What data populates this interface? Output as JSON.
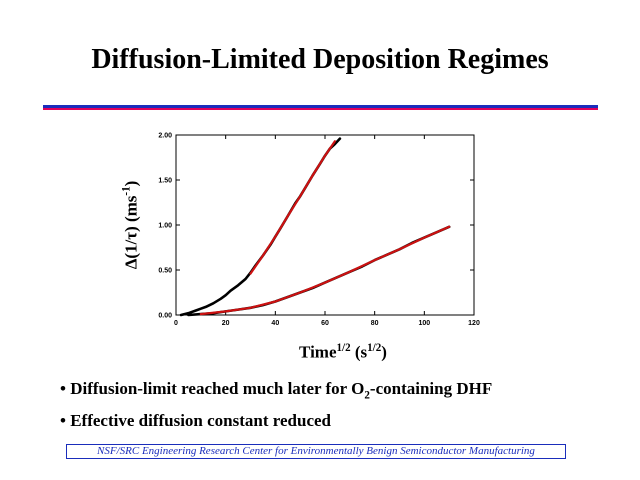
{
  "slide": {
    "title": "Diffusion-Limited Deposition Regimes",
    "ylabel_prefix": "Δ(1/τ) (ms",
    "ylabel_sup": "-1",
    "ylabel_suffix": ")",
    "xlabel_prefix": "Time",
    "xlabel_sup1": "1/2",
    "xlabel_mid": " (s",
    "xlabel_sup2": "1/2",
    "xlabel_suffix": ")",
    "bullet_char": "•",
    "bullet1_prefix": "Diffusion-limit reached much later for O",
    "bullet1_sub": "2",
    "bullet1_suffix": "-containing DHF",
    "bullet2": "Effective diffusion constant reduced",
    "footer": "NSF/SRC Engineering Research Center for Environmentally Benign Semiconductor Manufacturing"
  },
  "colors": {
    "rule_blue": "#1a2dbb",
    "rule_red": "#e0005a",
    "data": "#000000",
    "fit": "#cc1111",
    "footer": "#1a2dbb"
  },
  "chart_data": {
    "type": "line",
    "xlabel": "Time1/2 (s1/2)",
    "ylabel": "Δ(1/τ) (ms-1)",
    "xlim": [
      0,
      120
    ],
    "ylim": [
      0,
      2.0
    ],
    "x_ticks": [
      0,
      20,
      40,
      60,
      80,
      100,
      120
    ],
    "x_tick_labels": [
      "0",
      "20",
      "40",
      "60",
      "80",
      "100",
      "120"
    ],
    "y_ticks": [
      0,
      0.5,
      1.0,
      1.5,
      2.0
    ],
    "y_tick_labels": [
      "0.00",
      "0.50",
      "1.00",
      "1.50",
      "2.00"
    ],
    "series": [
      {
        "style": "data",
        "x": [
          2,
          5,
          8,
          10,
          12,
          15,
          18,
          20,
          22,
          25,
          28,
          30,
          32,
          35,
          38,
          40,
          42,
          45,
          48,
          50,
          52,
          55,
          58,
          60,
          62,
          64,
          66
        ],
        "y": [
          0.0,
          0.02,
          0.05,
          0.07,
          0.09,
          0.13,
          0.18,
          0.22,
          0.27,
          0.33,
          0.4,
          0.47,
          0.55,
          0.66,
          0.78,
          0.87,
          0.96,
          1.1,
          1.24,
          1.32,
          1.41,
          1.55,
          1.68,
          1.77,
          1.85,
          1.9,
          1.96
        ]
      },
      {
        "style": "fit",
        "x": [
          30,
          35,
          40,
          45,
          50,
          55,
          60,
          64
        ],
        "y": [
          0.46,
          0.66,
          0.87,
          1.1,
          1.32,
          1.55,
          1.77,
          1.93
        ]
      },
      {
        "style": "data",
        "x": [
          5,
          10,
          15,
          20,
          25,
          30,
          35,
          40,
          45,
          50,
          55,
          60,
          65,
          70,
          75,
          80,
          85,
          90,
          95,
          100,
          105,
          110
        ],
        "y": [
          0.0,
          0.01,
          0.02,
          0.04,
          0.06,
          0.08,
          0.11,
          0.15,
          0.2,
          0.25,
          0.3,
          0.36,
          0.42,
          0.48,
          0.54,
          0.61,
          0.67,
          0.73,
          0.8,
          0.86,
          0.92,
          0.98
        ]
      },
      {
        "style": "fit",
        "x": [
          10,
          20,
          30,
          40,
          50,
          60,
          70,
          80,
          90,
          100,
          110
        ],
        "y": [
          0.01,
          0.04,
          0.08,
          0.15,
          0.25,
          0.36,
          0.48,
          0.61,
          0.73,
          0.86,
          0.98
        ]
      }
    ]
  }
}
